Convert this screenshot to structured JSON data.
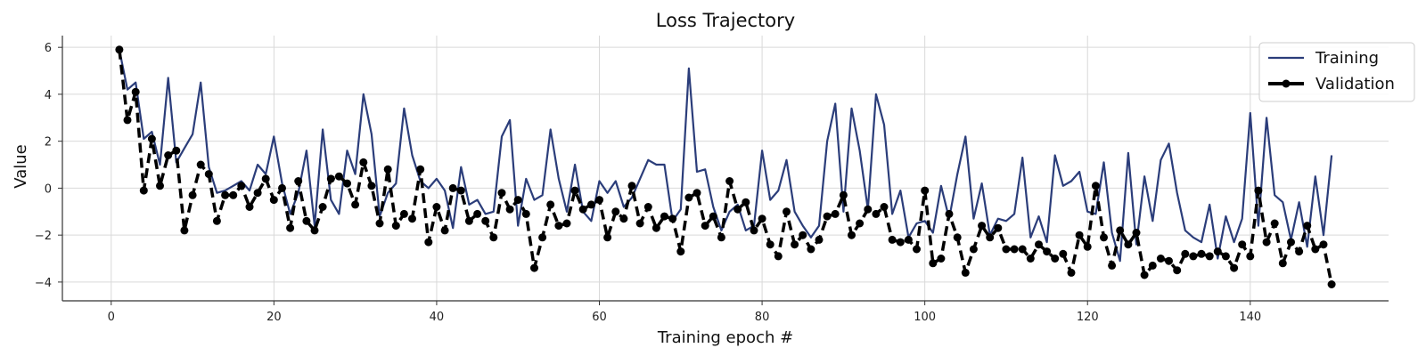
{
  "chart_data": {
    "type": "line",
    "title": "Loss Trajectory",
    "xlabel": "Training epoch #",
    "ylabel": "Value",
    "xlim": [
      -6,
      157
    ],
    "ylim": [
      -4.8,
      6.5
    ],
    "xticks": [
      0,
      20,
      40,
      60,
      80,
      100,
      120,
      140
    ],
    "yticks": [
      -4,
      -2,
      0,
      2,
      4,
      6
    ],
    "grid": true,
    "legend_position": "top-right",
    "x": [
      1,
      2,
      3,
      4,
      5,
      6,
      7,
      8,
      9,
      10,
      11,
      12,
      13,
      14,
      15,
      16,
      17,
      18,
      19,
      20,
      21,
      22,
      23,
      24,
      25,
      26,
      27,
      28,
      29,
      30,
      31,
      32,
      33,
      34,
      35,
      36,
      37,
      38,
      39,
      40,
      41,
      42,
      43,
      44,
      45,
      46,
      47,
      48,
      49,
      50,
      51,
      52,
      53,
      54,
      55,
      56,
      57,
      58,
      59,
      60,
      61,
      62,
      63,
      64,
      65,
      66,
      67,
      68,
      69,
      70,
      71,
      72,
      73,
      74,
      75,
      76,
      77,
      78,
      79,
      80,
      81,
      82,
      83,
      84,
      85,
      86,
      87,
      88,
      89,
      90,
      91,
      92,
      93,
      94,
      95,
      96,
      97,
      98,
      99,
      100,
      101,
      102,
      103,
      104,
      105,
      106,
      107,
      108,
      109,
      110,
      111,
      112,
      113,
      114,
      115,
      116,
      117,
      118,
      119,
      120,
      121,
      122,
      123,
      124,
      125,
      126,
      127,
      128,
      129,
      130,
      131,
      132,
      133,
      134,
      135,
      136,
      137,
      138,
      139,
      140,
      141,
      142,
      143,
      144,
      145,
      146,
      147,
      148,
      149,
      150
    ],
    "series": [
      {
        "name": "Training",
        "color": "#2b3d7a",
        "style": "solid",
        "values": [
          5.9,
          4.2,
          4.5,
          2.1,
          2.4,
          1.0,
          4.7,
          1.1,
          1.7,
          2.3,
          4.5,
          0.9,
          -0.2,
          -0.1,
          0.1,
          0.3,
          -0.1,
          1.0,
          0.6,
          2.2,
          0.2,
          -1.1,
          -0.2,
          1.6,
          -1.6,
          2.5,
          -0.5,
          -1.1,
          1.6,
          0.6,
          4.0,
          2.3,
          -1.2,
          -0.2,
          0.2,
          3.4,
          1.4,
          0.3,
          0.0,
          0.4,
          -0.1,
          -1.7,
          0.9,
          -0.7,
          -0.5,
          -1.1,
          -1.0,
          2.2,
          2.9,
          -1.6,
          0.4,
          -0.5,
          -0.3,
          2.5,
          0.4,
          -1.0,
          1.0,
          -1.0,
          -1.4,
          0.3,
          -0.2,
          0.3,
          -0.8,
          -0.4,
          0.4,
          1.2,
          1.0,
          1.0,
          -1.4,
          -0.9,
          5.1,
          0.7,
          0.8,
          -0.8,
          -1.8,
          -1.0,
          -0.7,
          -1.8,
          -1.6,
          1.6,
          -0.5,
          -0.1,
          1.2,
          -1.0,
          -1.6,
          -2.1,
          -1.6,
          2.0,
          3.6,
          -1.0,
          3.4,
          1.6,
          -0.9,
          4.0,
          2.7,
          -1.1,
          -0.1,
          -2.1,
          -1.5,
          -1.4,
          -1.9,
          0.1,
          -1.3,
          0.6,
          2.2,
          -1.3,
          0.2,
          -2.0,
          -1.3,
          -1.4,
          -1.1,
          1.3,
          -2.1,
          -1.2,
          -2.3,
          1.4,
          0.1,
          0.3,
          0.7,
          -1.0,
          -1.1,
          1.1,
          -1.9,
          -3.1,
          1.5,
          -2.4,
          0.5,
          -1.4,
          1.2,
          1.9,
          -0.2,
          -1.8,
          -2.1,
          -2.3,
          -0.7,
          -3.0,
          -1.2,
          -2.3,
          -1.3,
          3.2,
          -1.6,
          3.0,
          -0.3,
          -0.6,
          -2.2,
          -0.6,
          -2.5,
          0.5,
          -2.0,
          1.4
        ]
      },
      {
        "name": "Validation",
        "color": "#000000",
        "style": "dashed-markers",
        "values": [
          5.9,
          2.9,
          4.1,
          -0.1,
          2.1,
          0.1,
          1.4,
          1.6,
          -1.8,
          -0.3,
          1.0,
          0.6,
          -1.4,
          -0.3,
          -0.3,
          0.1,
          -0.8,
          -0.2,
          0.4,
          -0.5,
          0.0,
          -1.7,
          0.3,
          -1.4,
          -1.8,
          -0.8,
          0.4,
          0.5,
          0.2,
          -0.7,
          1.1,
          0.1,
          -1.5,
          0.8,
          -1.6,
          -1.1,
          -1.3,
          0.8,
          -2.3,
          -0.8,
          -1.8,
          0.0,
          -0.1,
          -1.4,
          -1.1,
          -1.4,
          -2.1,
          -0.2,
          -0.9,
          -0.5,
          -1.1,
          -3.4,
          -2.1,
          -0.7,
          -1.6,
          -1.5,
          -0.1,
          -0.9,
          -0.7,
          -0.5,
          -2.1,
          -1.0,
          -1.3,
          0.1,
          -1.5,
          -0.8,
          -1.7,
          -1.2,
          -1.3,
          -2.7,
          -0.4,
          -0.2,
          -1.6,
          -1.2,
          -2.1,
          0.3,
          -0.9,
          -0.6,
          -1.8,
          -1.3,
          -2.4,
          -2.9,
          -1.0,
          -2.4,
          -2.0,
          -2.6,
          -2.2,
          -1.2,
          -1.1,
          -0.3,
          -2.0,
          -1.5,
          -0.9,
          -1.1,
          -0.8,
          -2.2,
          -2.3,
          -2.2,
          -2.6,
          -0.1,
          -3.2,
          -3.0,
          -1.1,
          -2.1,
          -3.6,
          -2.6,
          -1.6,
          -2.1,
          -1.7,
          -2.6,
          -2.6,
          -2.6,
          -3.0,
          -2.4,
          -2.7,
          -3.0,
          -2.8,
          -3.6,
          -2.0,
          -2.5,
          0.1,
          -2.1,
          -3.3,
          -1.8,
          -2.4,
          -1.9,
          -3.7,
          -3.3,
          -3.0,
          -3.1,
          -3.5,
          -2.8,
          -2.9,
          -2.8,
          -2.9,
          -2.7,
          -2.9,
          -3.4,
          -2.4,
          -2.9,
          -0.1,
          -2.3,
          -1.5,
          -3.2,
          -2.3,
          -2.7,
          -1.6,
          -2.6,
          -2.4,
          -4.1
        ]
      }
    ]
  }
}
